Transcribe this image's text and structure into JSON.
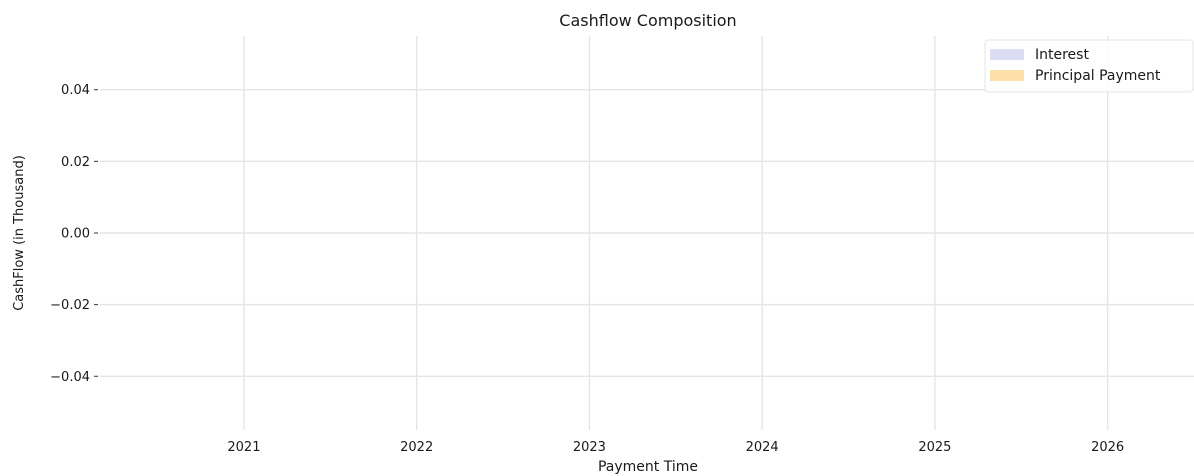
{
  "chart_data": {
    "type": "area",
    "title": "Cashflow Composition",
    "xlabel": "Payment Time",
    "ylabel": "CashFlow (in Thousand)",
    "x_ticks": [
      "2021",
      "2022",
      "2023",
      "2024",
      "2025",
      "2026"
    ],
    "y_ticks": [
      0.04,
      0.02,
      0.0,
      -0.02,
      -0.04
    ],
    "y_tick_labels": [
      "0.04",
      "0.02",
      "0.00",
      "−0.02",
      "−0.04"
    ],
    "ylim": [
      -0.055,
      0.055
    ],
    "xlim": [
      "2020-03",
      "2026-07"
    ],
    "grid": true,
    "legend_position": "top-right",
    "series": [
      {
        "name": "Interest",
        "color": "#dcdcf5",
        "values": []
      },
      {
        "name": "Principal Payment",
        "color": "#fde0a8",
        "values": []
      }
    ]
  }
}
